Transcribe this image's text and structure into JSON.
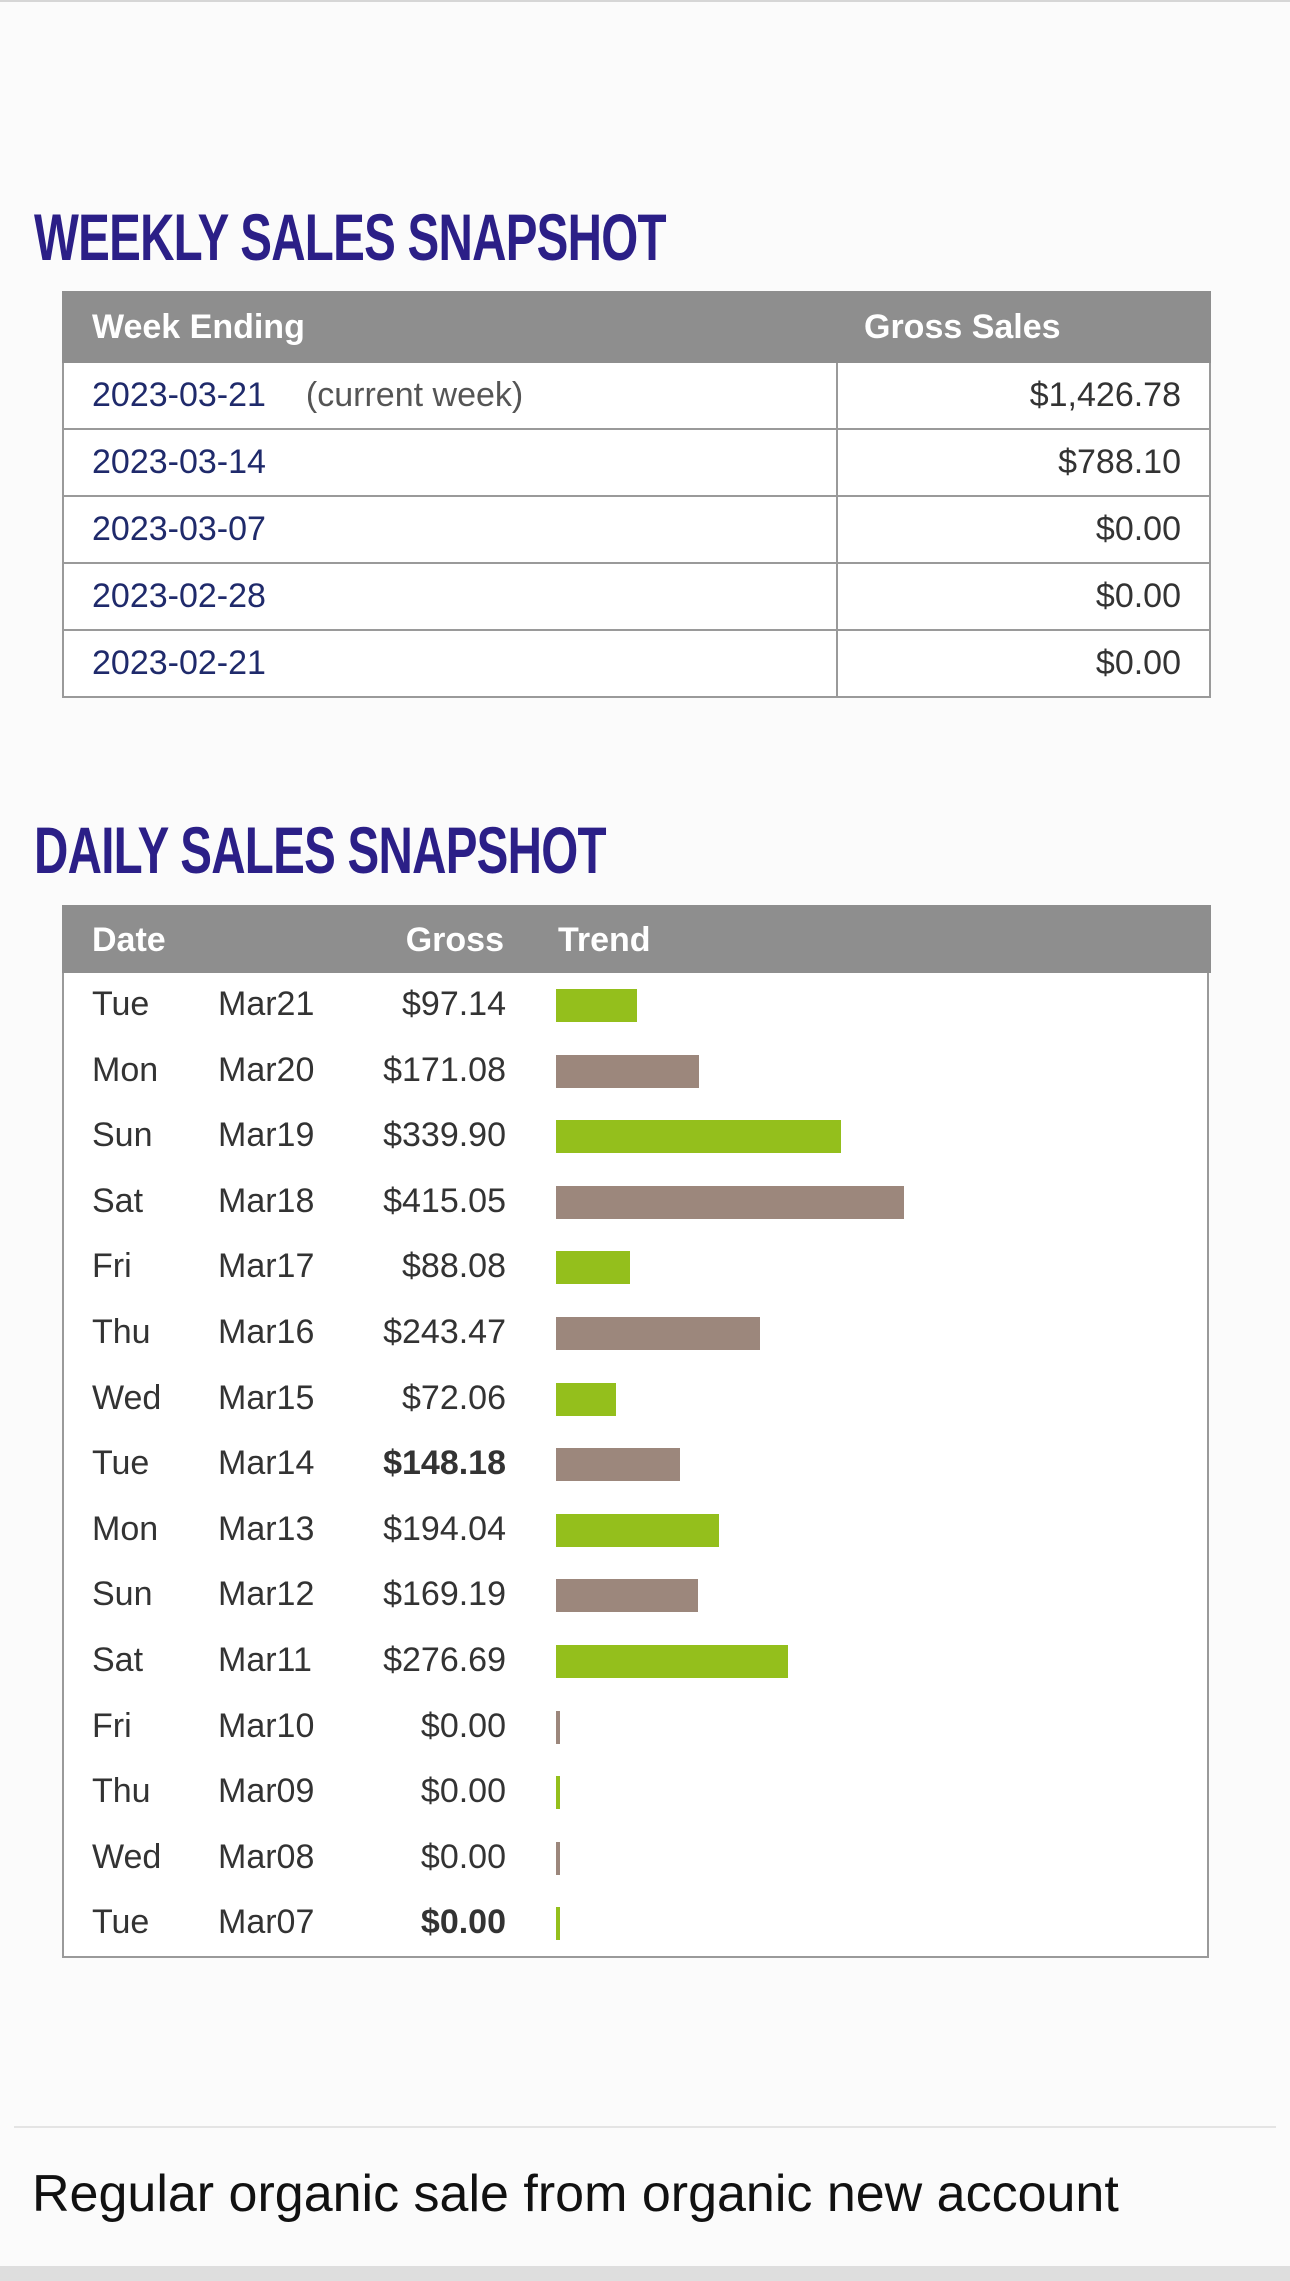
{
  "weekly": {
    "title": "WEEKLY SALES SNAPSHOT",
    "columns": [
      "Week Ending",
      "Gross Sales"
    ],
    "rows": [
      {
        "week": "2023-03-21",
        "note": "(current week)",
        "gross": "$1,426.78"
      },
      {
        "week": "2023-03-14",
        "note": "",
        "gross": "$788.10"
      },
      {
        "week": "2023-03-07",
        "note": "",
        "gross": "$0.00"
      },
      {
        "week": "2023-02-28",
        "note": "",
        "gross": "$0.00"
      },
      {
        "week": "2023-02-21",
        "note": "",
        "gross": "$0.00"
      }
    ]
  },
  "daily": {
    "title": "DAILY SALES SNAPSHOT",
    "columns": [
      "Date",
      "Gross",
      "Trend"
    ],
    "colors": {
      "green": "#94bf1c",
      "brown": "#9c877c"
    },
    "rows": [
      {
        "day": "Tue",
        "date": "Mar21",
        "gross": "$97.14",
        "value": 97.14,
        "bold": false,
        "color": "green"
      },
      {
        "day": "Mon",
        "date": "Mar20",
        "gross": "$171.08",
        "value": 171.08,
        "bold": false,
        "color": "brown"
      },
      {
        "day": "Sun",
        "date": "Mar19",
        "gross": "$339.90",
        "value": 339.9,
        "bold": false,
        "color": "green"
      },
      {
        "day": "Sat",
        "date": "Mar18",
        "gross": "$415.05",
        "value": 415.05,
        "bold": false,
        "color": "brown"
      },
      {
        "day": "Fri",
        "date": "Mar17",
        "gross": "$88.08",
        "value": 88.08,
        "bold": false,
        "color": "green"
      },
      {
        "day": "Thu",
        "date": "Mar16",
        "gross": "$243.47",
        "value": 243.47,
        "bold": false,
        "color": "brown"
      },
      {
        "day": "Wed",
        "date": "Mar15",
        "gross": "$72.06",
        "value": 72.06,
        "bold": false,
        "color": "green"
      },
      {
        "day": "Tue",
        "date": "Mar14",
        "gross": "$148.18",
        "value": 148.18,
        "bold": true,
        "color": "brown"
      },
      {
        "day": "Mon",
        "date": "Mar13",
        "gross": "$194.04",
        "value": 194.04,
        "bold": false,
        "color": "green"
      },
      {
        "day": "Sun",
        "date": "Mar12",
        "gross": "$169.19",
        "value": 169.19,
        "bold": false,
        "color": "brown"
      },
      {
        "day": "Sat",
        "date": "Mar11",
        "gross": "$276.69",
        "value": 276.69,
        "bold": false,
        "color": "green"
      },
      {
        "day": "Fri",
        "date": "Mar10",
        "gross": "$0.00",
        "value": 0,
        "bold": false,
        "color": "brown"
      },
      {
        "day": "Thu",
        "date": "Mar09",
        "gross": "$0.00",
        "value": 0,
        "bold": false,
        "color": "green"
      },
      {
        "day": "Wed",
        "date": "Mar08",
        "gross": "$0.00",
        "value": 0,
        "bold": false,
        "color": "brown"
      },
      {
        "day": "Tue",
        "date": "Mar07",
        "gross": "$0.00",
        "value": 0,
        "bold": true,
        "color": "green"
      }
    ]
  },
  "caption": "Regular organic sale from organic new account"
}
